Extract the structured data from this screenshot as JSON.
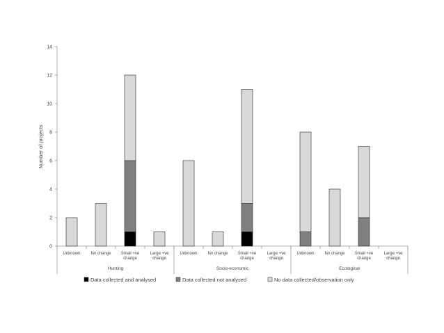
{
  "chart_data": {
    "type": "bar",
    "stacked": true,
    "ylabel": "Number of projects",
    "ylim": [
      0,
      14
    ],
    "yticks": [
      0,
      2,
      4,
      6,
      8,
      10,
      12,
      14
    ],
    "grid": false,
    "legend_position": "bottom",
    "groups": [
      {
        "name": "Hunting",
        "categories": [
          {
            "label": [
              "Unknown"
            ],
            "values": [
              0,
              0,
              2
            ]
          },
          {
            "label": [
              "No change"
            ],
            "values": [
              0,
              0,
              3
            ]
          },
          {
            "label": [
              "Small +ve",
              "change"
            ],
            "values": [
              1,
              5,
              6
            ]
          },
          {
            "label": [
              "Large +ve",
              "change"
            ],
            "values": [
              0,
              0,
              1
            ]
          }
        ]
      },
      {
        "name": "Socio-economic",
        "categories": [
          {
            "label": [
              "Unknown"
            ],
            "values": [
              0,
              0,
              6
            ]
          },
          {
            "label": [
              "No change"
            ],
            "values": [
              0,
              0,
              1
            ]
          },
          {
            "label": [
              "Small +ve",
              "change"
            ],
            "values": [
              1,
              2,
              8
            ]
          },
          {
            "label": [
              "Large +ve",
              "change"
            ],
            "values": [
              0,
              0,
              0
            ]
          }
        ]
      },
      {
        "name": "Ecological",
        "categories": [
          {
            "label": [
              "Unknown"
            ],
            "values": [
              0,
              1,
              7
            ]
          },
          {
            "label": [
              "No change"
            ],
            "values": [
              0,
              0,
              4
            ]
          },
          {
            "label": [
              "Small +ve",
              "change"
            ],
            "values": [
              0,
              2,
              5
            ]
          },
          {
            "label": [
              "Large +ve",
              "change"
            ],
            "values": [
              0,
              0,
              0
            ]
          }
        ]
      }
    ],
    "series": [
      {
        "name": "Data collected and analysed",
        "color": "#000000"
      },
      {
        "name": "Data collected not analysed",
        "color": "#808080"
      },
      {
        "name": "No data collected/observation only",
        "color": "#d9d9d9"
      }
    ]
  }
}
